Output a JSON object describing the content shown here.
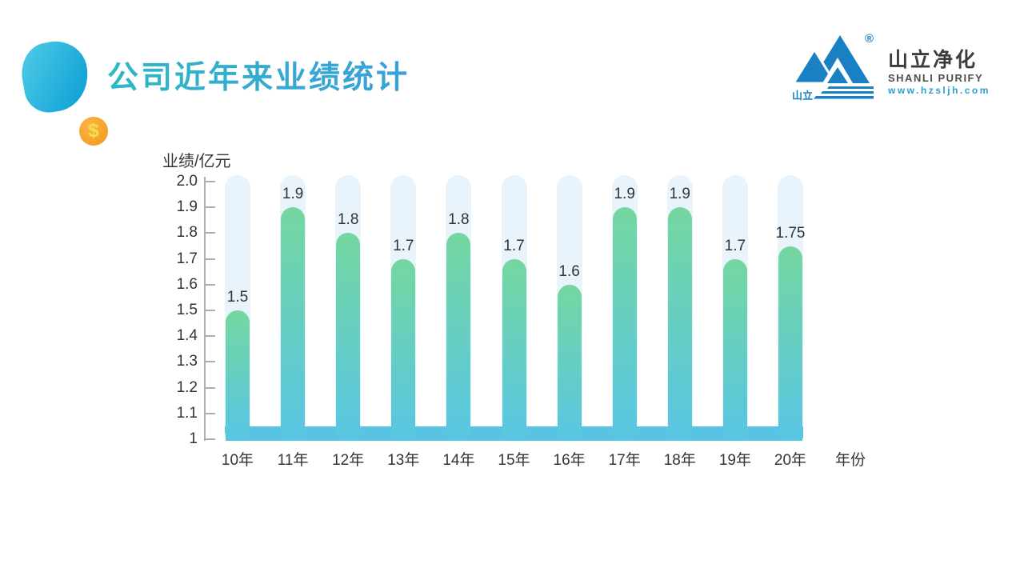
{
  "header": {
    "title": "公司近年来业绩统计",
    "title_gradient": [
      "#2cb8c4",
      "#3b9fdb"
    ]
  },
  "decor": {
    "coin_symbol": "$"
  },
  "logo": {
    "name_cn": "山立净化",
    "name_en": "SHANLI PURIFY",
    "website": "www.hzsljh.com",
    "mark_cn": "山立",
    "registered": "®",
    "brand_blue": "#1a80c4"
  },
  "chart_data": {
    "type": "bar",
    "title": "公司近年来业绩统计",
    "categories": [
      "10年",
      "11年",
      "12年",
      "13年",
      "14年",
      "15年",
      "16年",
      "17年",
      "18年",
      "19年",
      "20年"
    ],
    "values": [
      1.5,
      1.9,
      1.8,
      1.7,
      1.8,
      1.7,
      1.6,
      1.9,
      1.9,
      1.7,
      1.75
    ],
    "ylabel": "业绩/亿元",
    "xlabel": "年份",
    "ylim": [
      1,
      2
    ],
    "yticks": [
      "2.0",
      "1.9",
      "1.8",
      "1.7",
      "1.6",
      "1.5",
      "1.4",
      "1.3",
      "1.2",
      "1.1",
      "1"
    ],
    "grid": false,
    "legend": false,
    "colors": {
      "bar_top": "#74d7a0",
      "bar_bottom": "#58c5e4",
      "track": "#e8f3fb",
      "baseline_band": "#58c3e3",
      "axis": "#a7aeb4",
      "label": "#333333"
    }
  }
}
